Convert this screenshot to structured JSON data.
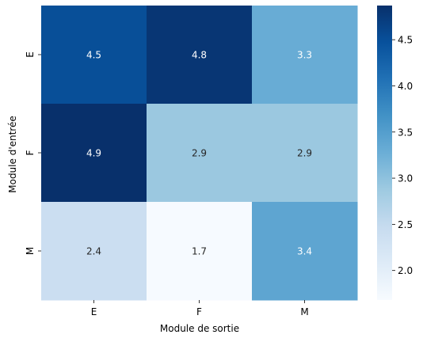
{
  "chart_data": {
    "type": "heatmap",
    "title": "",
    "xlabel": "Module de sortie",
    "ylabel": "Module d'entrée",
    "x_categories": [
      "E",
      "F",
      "M"
    ],
    "y_categories": [
      "E",
      "F",
      "M"
    ],
    "values": [
      [
        4.5,
        4.8,
        3.3
      ],
      [
        4.9,
        2.9,
        2.9
      ],
      [
        2.4,
        1.7,
        3.4
      ]
    ],
    "annotations": [
      [
        "4.5",
        "4.8",
        "3.3"
      ],
      [
        "4.9",
        "2.9",
        "2.9"
      ],
      [
        "2.4",
        "1.7",
        "3.4"
      ]
    ],
    "colormap": "Blues",
    "vmin": 1.68,
    "vmax": 4.87,
    "colorbar_ticks": [
      2.0,
      2.5,
      3.0,
      3.5,
      4.0,
      4.5
    ],
    "colorbar_tick_labels": [
      "2.0",
      "2.5",
      "3.0",
      "3.5",
      "4.0",
      "4.5"
    ],
    "colormap_stops": [
      "#f7fbff",
      "#deebf7",
      "#c6dbef",
      "#9ecae1",
      "#6baed6",
      "#4292c6",
      "#2171b5",
      "#08519c",
      "#08306b"
    ]
  }
}
